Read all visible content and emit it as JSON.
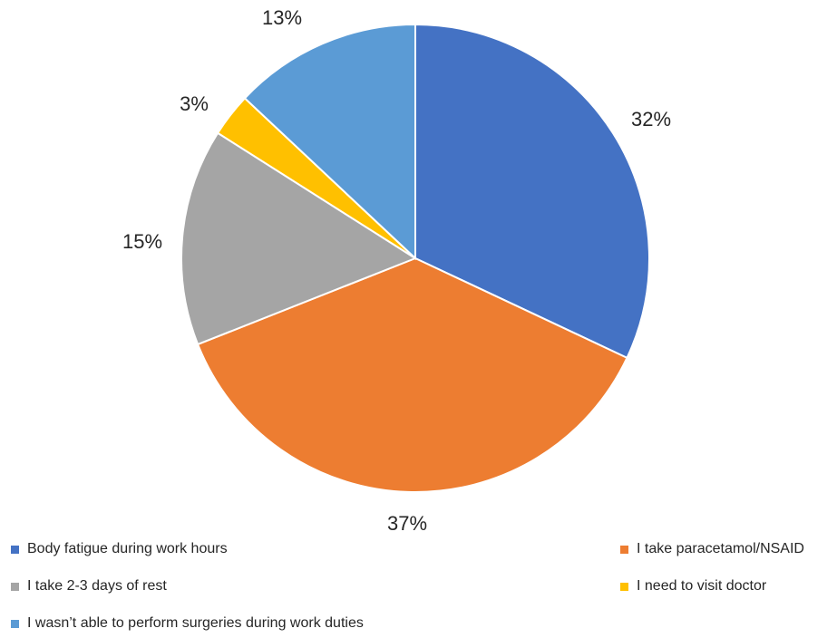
{
  "chart_data": {
    "type": "pie",
    "title": "",
    "start_angle_deg": 0,
    "direction": "clockwise",
    "slices": [
      {
        "label": "Body fatigue during work hours",
        "value": 32,
        "display": "32%",
        "color": "#4472C4"
      },
      {
        "label": "I take paracetamol/NSAID",
        "value": 37,
        "display": "37%",
        "color": "#ED7D31"
      },
      {
        "label": "I take 2-3 days of rest",
        "value": 15,
        "display": "15%",
        "color": "#A5A5A5"
      },
      {
        "label": "I need to visit doctor",
        "value": 3,
        "display": "3%",
        "color": "#FFC000"
      },
      {
        "label": "I wasn’t able to perform surgeries during work duties",
        "value": 13,
        "display": "13%",
        "color": "#5B9BD5"
      }
    ],
    "legend_position": "bottom"
  }
}
